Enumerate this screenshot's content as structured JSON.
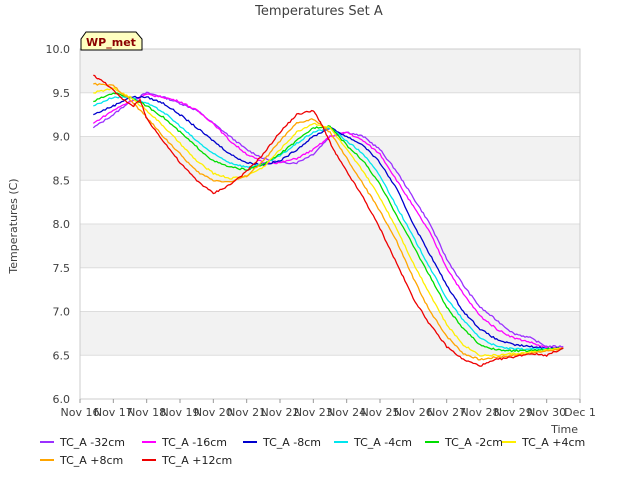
{
  "chart_data": {
    "type": "line",
    "title": "Temperatures Set A",
    "xlabel": "Time",
    "ylabel": "Temperatures (C)",
    "badge": "WP_met",
    "ylim": [
      6.0,
      10.0
    ],
    "y_ticks": [
      "6.0",
      "6.5",
      "7.0",
      "7.5",
      "8.0",
      "8.5",
      "9.0",
      "9.5",
      "10.0"
    ],
    "x_ticks": [
      "Nov 16",
      "Nov 17",
      "Nov 18",
      "Nov 19",
      "Nov 20",
      "Nov 21",
      "Nov 22",
      "Nov 23",
      "Nov 24",
      "Nov 25",
      "Nov 26",
      "Nov 27",
      "Nov 28",
      "Nov 29",
      "Nov 30",
      "Dec 1"
    ],
    "x_units": "days since Nov 16",
    "xlim": [
      0,
      15
    ],
    "series": [
      {
        "name": "TC_A -32cm",
        "color": "#9b30ff",
        "points": [
          [
            0.4,
            9.1
          ],
          [
            1.0,
            9.25
          ],
          [
            1.5,
            9.4
          ],
          [
            2.0,
            9.5
          ],
          [
            2.5,
            9.45
          ],
          [
            3.0,
            9.38
          ],
          [
            3.5,
            9.3
          ],
          [
            4.0,
            9.15
          ],
          [
            4.5,
            9.0
          ],
          [
            5.0,
            8.85
          ],
          [
            5.5,
            8.75
          ],
          [
            6.0,
            8.7
          ],
          [
            6.5,
            8.7
          ],
          [
            7.0,
            8.8
          ],
          [
            7.5,
            9.0
          ],
          [
            8.0,
            9.05
          ],
          [
            8.5,
            9.0
          ],
          [
            9.0,
            8.85
          ],
          [
            9.5,
            8.6
          ],
          [
            10.0,
            8.3
          ],
          [
            10.5,
            8.0
          ],
          [
            11.0,
            7.6
          ],
          [
            11.5,
            7.3
          ],
          [
            12.0,
            7.05
          ],
          [
            12.5,
            6.9
          ],
          [
            13.0,
            6.75
          ],
          [
            13.5,
            6.7
          ],
          [
            14.0,
            6.6
          ],
          [
            14.5,
            6.6
          ]
        ]
      },
      {
        "name": "TC_A -16cm",
        "color": "#ff00ff",
        "points": [
          [
            0.4,
            9.15
          ],
          [
            1.0,
            9.3
          ],
          [
            1.5,
            9.4
          ],
          [
            2.0,
            9.48
          ],
          [
            2.5,
            9.45
          ],
          [
            3.0,
            9.4
          ],
          [
            3.5,
            9.3
          ],
          [
            4.0,
            9.15
          ],
          [
            4.5,
            8.95
          ],
          [
            5.0,
            8.8
          ],
          [
            5.5,
            8.7
          ],
          [
            6.0,
            8.7
          ],
          [
            6.5,
            8.75
          ],
          [
            7.0,
            8.85
          ],
          [
            7.5,
            9.0
          ],
          [
            8.0,
            9.05
          ],
          [
            8.5,
            8.95
          ],
          [
            9.0,
            8.8
          ],
          [
            9.5,
            8.5
          ],
          [
            10.0,
            8.2
          ],
          [
            10.5,
            7.9
          ],
          [
            11.0,
            7.5
          ],
          [
            11.5,
            7.2
          ],
          [
            12.0,
            6.95
          ],
          [
            12.5,
            6.8
          ],
          [
            13.0,
            6.7
          ],
          [
            13.5,
            6.65
          ],
          [
            14.0,
            6.58
          ],
          [
            14.5,
            6.58
          ]
        ]
      },
      {
        "name": "TC_A -8cm",
        "color": "#0000cd",
        "points": [
          [
            0.4,
            9.25
          ],
          [
            1.0,
            9.35
          ],
          [
            1.5,
            9.45
          ],
          [
            2.0,
            9.45
          ],
          [
            2.5,
            9.38
          ],
          [
            3.0,
            9.25
          ],
          [
            3.5,
            9.1
          ],
          [
            4.0,
            8.95
          ],
          [
            4.5,
            8.8
          ],
          [
            5.0,
            8.7
          ],
          [
            5.5,
            8.68
          ],
          [
            6.0,
            8.72
          ],
          [
            6.5,
            8.85
          ],
          [
            7.0,
            9.0
          ],
          [
            7.5,
            9.1
          ],
          [
            8.0,
            9.0
          ],
          [
            8.5,
            8.9
          ],
          [
            9.0,
            8.7
          ],
          [
            9.5,
            8.4
          ],
          [
            10.0,
            8.0
          ],
          [
            10.5,
            7.65
          ],
          [
            11.0,
            7.3
          ],
          [
            11.5,
            7.0
          ],
          [
            12.0,
            6.8
          ],
          [
            12.5,
            6.68
          ],
          [
            13.0,
            6.62
          ],
          [
            13.5,
            6.6
          ],
          [
            14.0,
            6.58
          ],
          [
            14.5,
            6.58
          ]
        ]
      },
      {
        "name": "TC_A -4cm",
        "color": "#00e5ee",
        "points": [
          [
            0.4,
            9.35
          ],
          [
            1.0,
            9.45
          ],
          [
            1.5,
            9.45
          ],
          [
            2.0,
            9.38
          ],
          [
            2.5,
            9.28
          ],
          [
            3.0,
            9.12
          ],
          [
            3.5,
            8.95
          ],
          [
            4.0,
            8.8
          ],
          [
            4.5,
            8.7
          ],
          [
            5.0,
            8.65
          ],
          [
            5.5,
            8.68
          ],
          [
            6.0,
            8.78
          ],
          [
            6.5,
            8.92
          ],
          [
            7.0,
            9.05
          ],
          [
            7.5,
            9.1
          ],
          [
            8.0,
            8.95
          ],
          [
            8.5,
            8.8
          ],
          [
            9.0,
            8.55
          ],
          [
            9.5,
            8.2
          ],
          [
            10.0,
            7.85
          ],
          [
            10.5,
            7.5
          ],
          [
            11.0,
            7.15
          ],
          [
            11.5,
            6.9
          ],
          [
            12.0,
            6.7
          ],
          [
            12.5,
            6.6
          ],
          [
            13.0,
            6.57
          ],
          [
            13.5,
            6.57
          ],
          [
            14.0,
            6.57
          ],
          [
            14.5,
            6.58
          ]
        ]
      },
      {
        "name": "TC_A -2cm",
        "color": "#00dd00",
        "points": [
          [
            0.4,
            9.4
          ],
          [
            1.0,
            9.5
          ],
          [
            1.5,
            9.45
          ],
          [
            2.0,
            9.35
          ],
          [
            2.5,
            9.22
          ],
          [
            3.0,
            9.05
          ],
          [
            3.5,
            8.88
          ],
          [
            4.0,
            8.72
          ],
          [
            4.5,
            8.65
          ],
          [
            5.0,
            8.62
          ],
          [
            5.5,
            8.68
          ],
          [
            6.0,
            8.8
          ],
          [
            6.5,
            8.95
          ],
          [
            7.0,
            9.1
          ],
          [
            7.5,
            9.12
          ],
          [
            8.0,
            8.9
          ],
          [
            8.5,
            8.72
          ],
          [
            9.0,
            8.45
          ],
          [
            9.5,
            8.1
          ],
          [
            10.0,
            7.75
          ],
          [
            10.5,
            7.4
          ],
          [
            11.0,
            7.05
          ],
          [
            11.5,
            6.8
          ],
          [
            12.0,
            6.62
          ],
          [
            12.5,
            6.56
          ],
          [
            13.0,
            6.55
          ],
          [
            13.5,
            6.55
          ],
          [
            14.0,
            6.57
          ],
          [
            14.5,
            6.58
          ]
        ]
      },
      {
        "name": "TC_A +4cm",
        "color": "#ffee00",
        "points": [
          [
            0.4,
            9.5
          ],
          [
            1.0,
            9.55
          ],
          [
            1.5,
            9.45
          ],
          [
            2.0,
            9.3
          ],
          [
            2.5,
            9.12
          ],
          [
            3.0,
            8.92
          ],
          [
            3.5,
            8.72
          ],
          [
            4.0,
            8.58
          ],
          [
            4.5,
            8.52
          ],
          [
            5.0,
            8.55
          ],
          [
            5.5,
            8.65
          ],
          [
            6.0,
            8.85
          ],
          [
            6.5,
            9.05
          ],
          [
            7.0,
            9.15
          ],
          [
            7.5,
            9.1
          ],
          [
            8.0,
            8.85
          ],
          [
            8.5,
            8.6
          ],
          [
            9.0,
            8.3
          ],
          [
            9.5,
            7.95
          ],
          [
            10.0,
            7.55
          ],
          [
            10.5,
            7.2
          ],
          [
            11.0,
            6.85
          ],
          [
            11.5,
            6.62
          ],
          [
            12.0,
            6.5
          ],
          [
            12.5,
            6.5
          ],
          [
            13.0,
            6.52
          ],
          [
            13.5,
            6.53
          ],
          [
            14.0,
            6.56
          ],
          [
            14.5,
            6.58
          ]
        ]
      },
      {
        "name": "TC_A +8cm",
        "color": "#ffa500",
        "points": [
          [
            0.4,
            9.6
          ],
          [
            1.0,
            9.58
          ],
          [
            1.5,
            9.42
          ],
          [
            2.0,
            9.22
          ],
          [
            2.5,
            9.0
          ],
          [
            3.0,
            8.8
          ],
          [
            3.5,
            8.6
          ],
          [
            4.0,
            8.5
          ],
          [
            4.5,
            8.48
          ],
          [
            5.0,
            8.55
          ],
          [
            5.5,
            8.72
          ],
          [
            6.0,
            8.95
          ],
          [
            6.5,
            9.15
          ],
          [
            7.0,
            9.2
          ],
          [
            7.5,
            9.05
          ],
          [
            8.0,
            8.75
          ],
          [
            8.5,
            8.45
          ],
          [
            9.0,
            8.15
          ],
          [
            9.5,
            7.8
          ],
          [
            10.0,
            7.38
          ],
          [
            10.5,
            7.0
          ],
          [
            11.0,
            6.72
          ],
          [
            11.5,
            6.52
          ],
          [
            12.0,
            6.45
          ],
          [
            12.5,
            6.48
          ],
          [
            13.0,
            6.5
          ],
          [
            13.5,
            6.52
          ],
          [
            14.0,
            6.55
          ],
          [
            14.5,
            6.58
          ]
        ]
      },
      {
        "name": "TC_A +12cm",
        "color": "#ee0000",
        "points": [
          [
            0.4,
            9.7
          ],
          [
            0.8,
            9.6
          ],
          [
            1.2,
            9.45
          ],
          [
            1.6,
            9.35
          ],
          [
            1.8,
            9.42
          ],
          [
            2.0,
            9.2
          ],
          [
            2.5,
            8.95
          ],
          [
            3.0,
            8.7
          ],
          [
            3.5,
            8.5
          ],
          [
            4.0,
            8.35
          ],
          [
            4.5,
            8.45
          ],
          [
            5.0,
            8.6
          ],
          [
            5.5,
            8.8
          ],
          [
            6.0,
            9.05
          ],
          [
            6.5,
            9.25
          ],
          [
            7.0,
            9.3
          ],
          [
            7.3,
            9.1
          ],
          [
            7.6,
            8.85
          ],
          [
            8.0,
            8.6
          ],
          [
            8.5,
            8.3
          ],
          [
            9.0,
            7.95
          ],
          [
            9.5,
            7.55
          ],
          [
            10.0,
            7.15
          ],
          [
            10.5,
            6.85
          ],
          [
            11.0,
            6.6
          ],
          [
            11.5,
            6.45
          ],
          [
            12.0,
            6.38
          ],
          [
            12.5,
            6.45
          ],
          [
            13.0,
            6.48
          ],
          [
            13.5,
            6.52
          ],
          [
            14.0,
            6.5
          ],
          [
            14.5,
            6.58
          ]
        ]
      }
    ]
  }
}
